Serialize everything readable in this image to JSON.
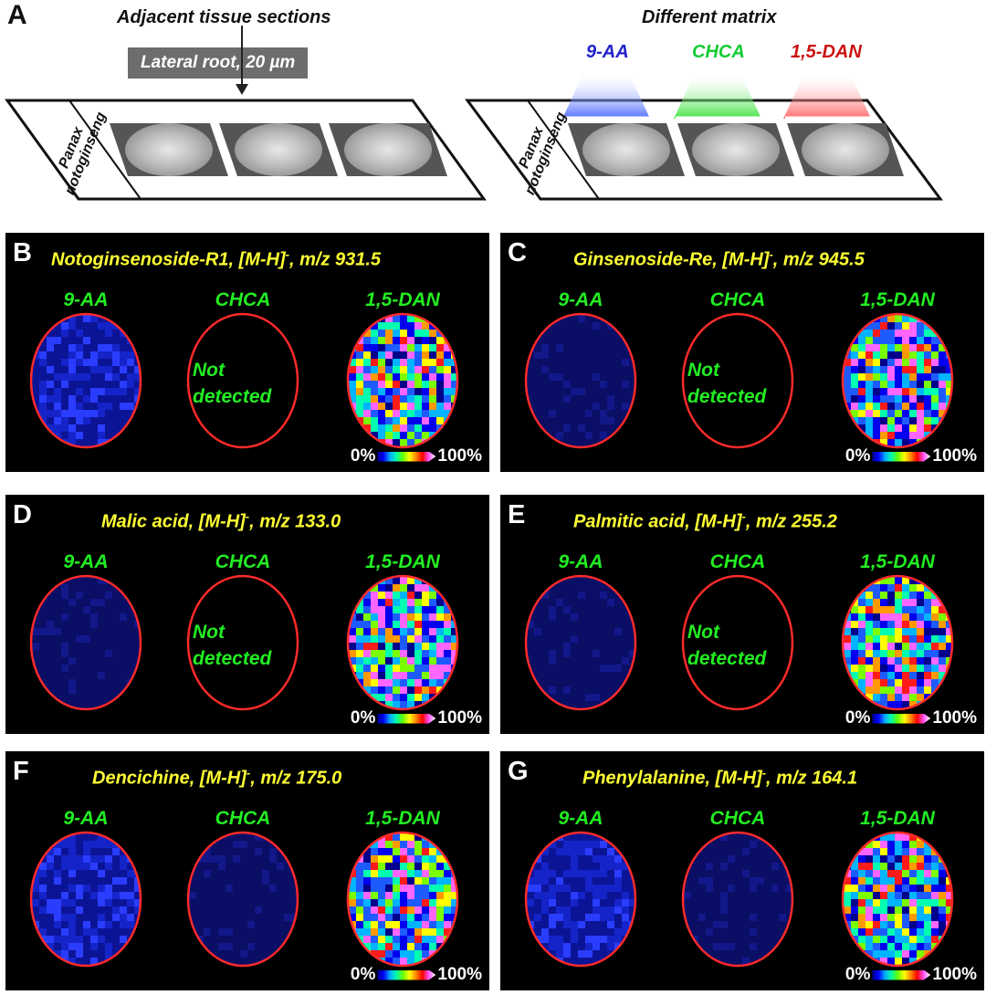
{
  "panel_a": {
    "letter": "A",
    "left_title": "Adjacent tissue sections",
    "left_tag": "Lateral root, 20 µm",
    "slide_label_1": "Panax",
    "slide_label_2": "notoginseng",
    "right_title": "Different matrix",
    "matrices": [
      {
        "label": "9-AA",
        "color": "#2222cc"
      },
      {
        "label": "CHCA",
        "color": "#11cc33"
      },
      {
        "label": "1,5-DAN",
        "color": "#cc1111"
      }
    ]
  },
  "columns": [
    "9-AA",
    "CHCA",
    "1,5-DAN"
  ],
  "not_detected": [
    "Not",
    "detected"
  ],
  "scale": {
    "min": "0%",
    "max": "100%"
  },
  "panels": [
    {
      "letter": "B",
      "compound": "Notoginsenoside-R1, [M-H]",
      "sup": "-",
      "mz": ", m/z 931.5",
      "detected": [
        "low",
        "none",
        "high"
      ]
    },
    {
      "letter": "C",
      "compound": "Ginsenoside-Re, [M-H]",
      "sup": "-",
      "mz": ", m/z 945.5",
      "detected": [
        "trace",
        "none",
        "high"
      ]
    },
    {
      "letter": "D",
      "compound": "Malic acid, [M-H]",
      "sup": "-",
      "mz": ", m/z 133.0",
      "detected": [
        "trace",
        "none",
        "high"
      ]
    },
    {
      "letter": "E",
      "compound": "Palmitic acid, [M-H]",
      "sup": "-",
      "mz": ", m/z 255.2",
      "detected": [
        "trace",
        "none",
        "high"
      ]
    },
    {
      "letter": "F",
      "compound": "Dencichine, [M-H]",
      "sup": "-",
      "mz": ", m/z 175.0",
      "detected": [
        "low",
        "trace",
        "high"
      ]
    },
    {
      "letter": "G",
      "compound": "Phenylalanine, [M-H]",
      "sup": "-",
      "mz": ", m/z 164.1",
      "detected": [
        "low",
        "trace",
        "high"
      ]
    }
  ]
}
